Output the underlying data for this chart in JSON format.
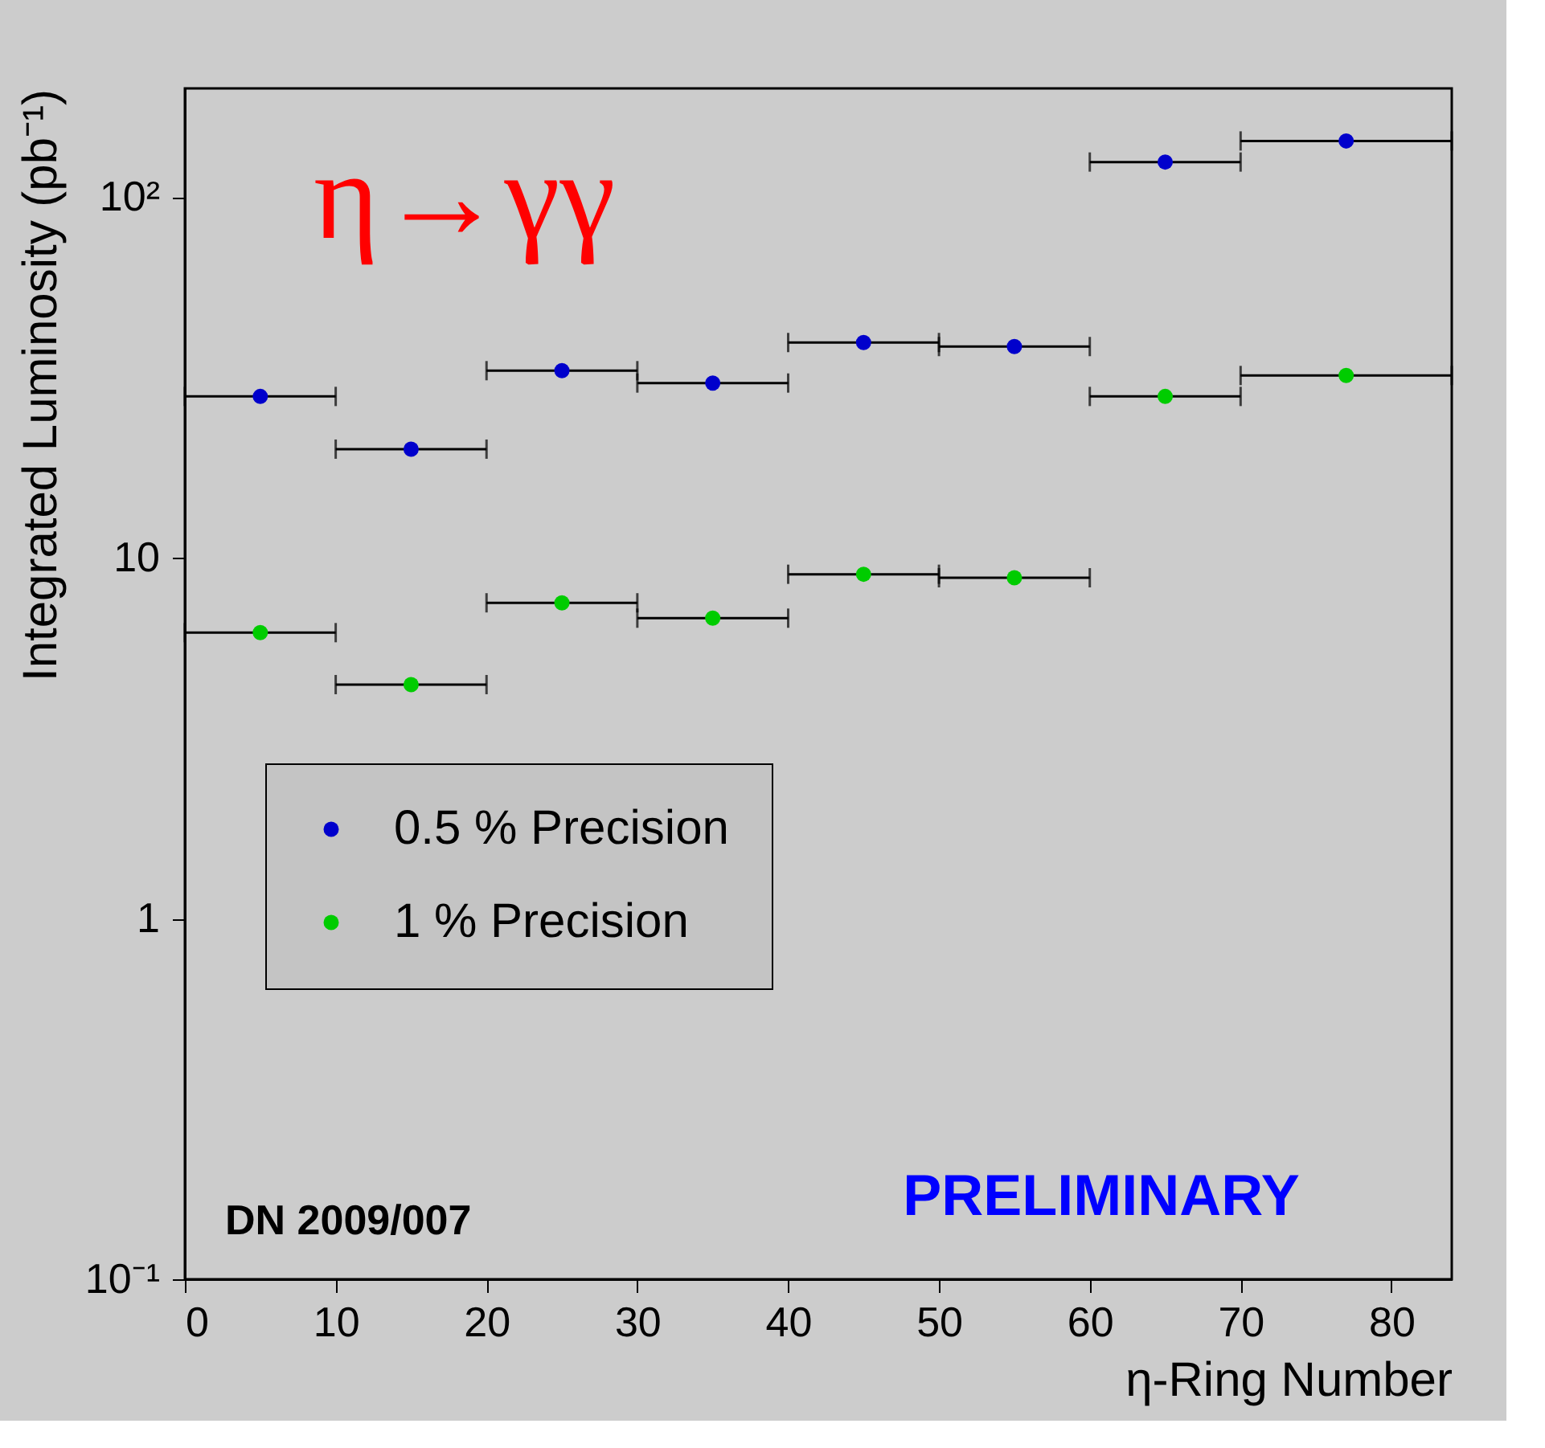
{
  "chart_data": {
    "type": "scatter",
    "xlabel": "η-Ring Number",
    "ylabel": "Integrated Luminosity (pb⁻¹)",
    "x": [
      5,
      15,
      25,
      35,
      45,
      55,
      65,
      77
    ],
    "series": [
      {
        "name": "0.5 % Precision",
        "color": "#0000cc",
        "values": [
          28,
          20,
          33,
          30.5,
          39.5,
          38.5,
          125,
          143
        ],
        "xerrors": [
          5,
          5,
          5,
          5,
          5,
          5,
          5,
          7
        ]
      },
      {
        "name": "1 % Precision",
        "color": "#00cc00",
        "values": [
          6.2,
          4.45,
          7.5,
          6.8,
          9.0,
          8.8,
          28,
          32
        ],
        "xerrors": [
          5,
          5,
          5,
          5,
          5,
          5,
          5,
          7
        ]
      }
    ],
    "xlim": [
      0,
      84
    ],
    "xticks": [
      0,
      10,
      20,
      30,
      40,
      50,
      60,
      70,
      80
    ],
    "ylim": [
      0.1,
      200
    ],
    "yticks": [
      {
        "value": 0.1,
        "label": "10⁻¹"
      },
      1,
      10,
      {
        "value": 100,
        "label": "10²"
      }
    ],
    "log": "y",
    "grid": false,
    "legend": "left",
    "marker": "circle",
    "annotations": [
      "η→γγ",
      "DN 2009/007",
      "PRELIMINARY"
    ]
  }
}
